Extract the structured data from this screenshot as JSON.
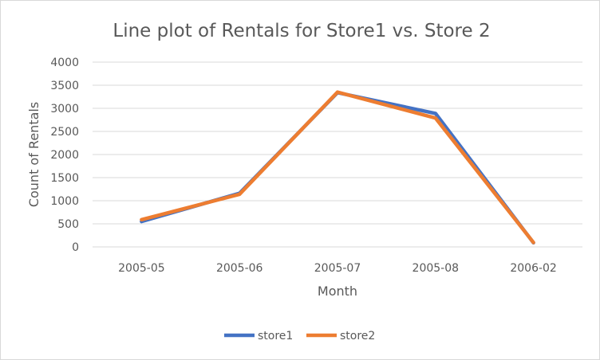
{
  "chart_data": {
    "type": "line",
    "title": "Line plot of Rentals for Store1 vs. Store 2",
    "xlabel": "Month",
    "ylabel": "Count of Rentals",
    "categories": [
      "2005-05",
      "2005-06",
      "2005-07",
      "2005-08",
      "2006-02"
    ],
    "yticks": [
      "0",
      "500",
      "1000",
      "1500",
      "2000",
      "2500",
      "3000",
      "3500",
      "4000"
    ],
    "ylim": [
      0,
      4000
    ],
    "grid": true,
    "legend_position": "bottom",
    "series": [
      {
        "name": "store1",
        "color": "#4472c4",
        "values": [
          550,
          1160,
          3340,
          2890,
          90
        ]
      },
      {
        "name": "store2",
        "color": "#ed7d31",
        "values": [
          590,
          1140,
          3350,
          2790,
          95
        ]
      }
    ]
  }
}
